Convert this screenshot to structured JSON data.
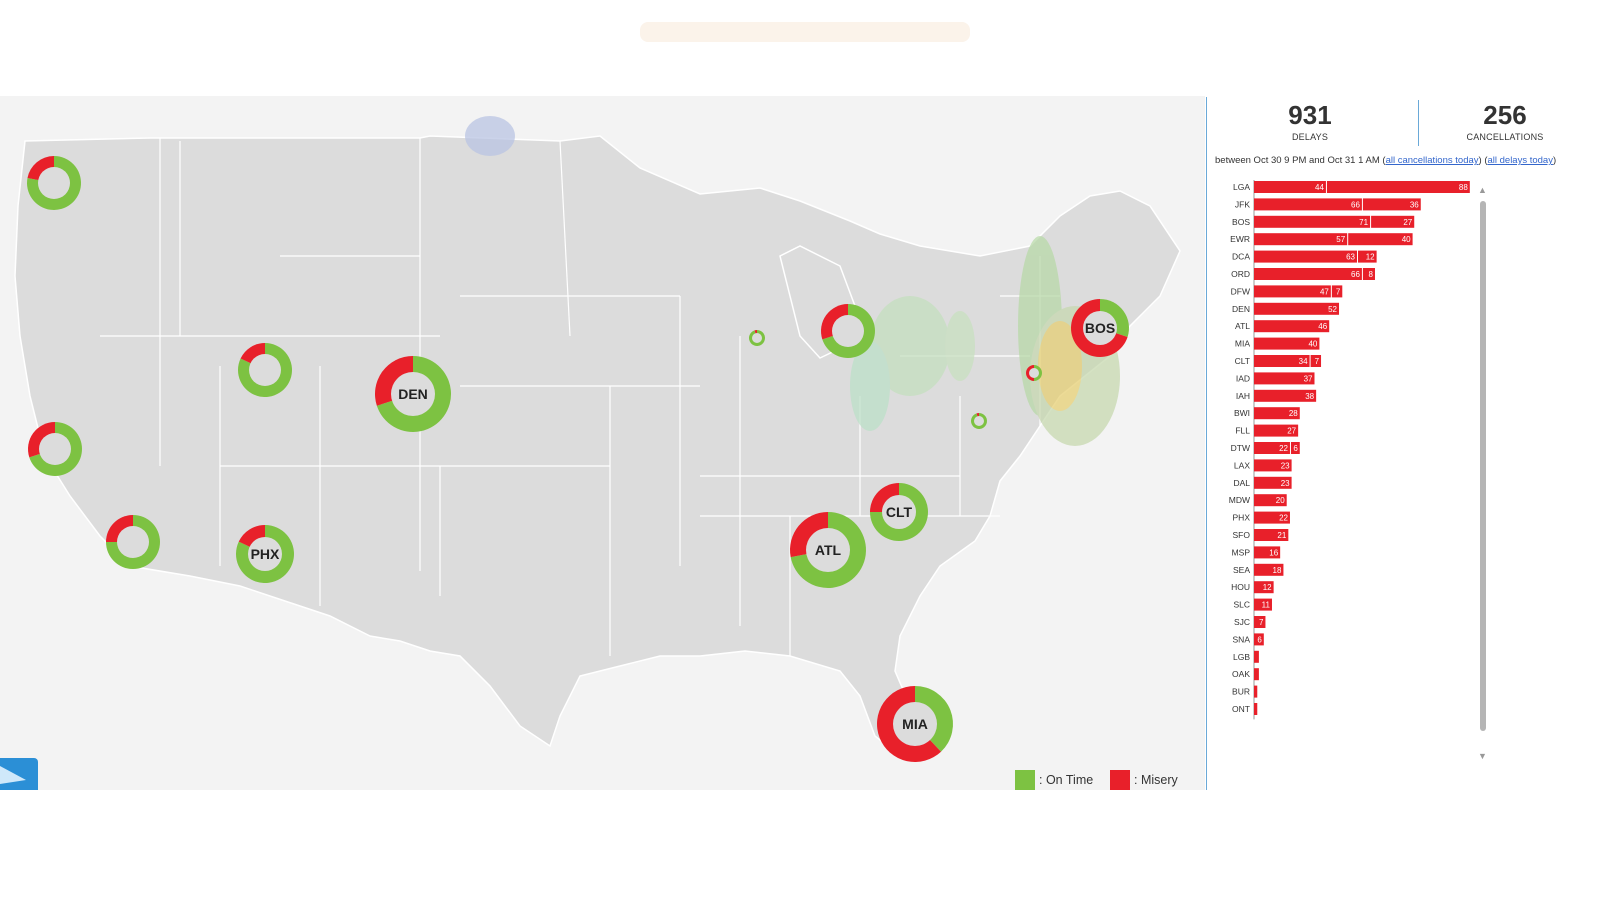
{
  "stats": {
    "delays": {
      "value": "931",
      "label": "DELAYS"
    },
    "cancellations": {
      "value": "256",
      "label": "CANCELLATIONS"
    },
    "range_text": "between Oct 30 9 PM and Oct 31 1 AM (",
    "link_cancellations": "all cancellations today",
    "link_sep": ") (",
    "link_delays": "all delays today",
    "range_end": ")"
  },
  "legend": {
    "on_time": ": On Time",
    "misery": ": Misery",
    "on_time_color": "#7dc242",
    "misery_color": "#e8202a"
  },
  "airports_map": [
    {
      "code": "",
      "misery": 0.22,
      "size": "small"
    },
    {
      "code": "",
      "misery": 0.18,
      "size": "small"
    },
    {
      "code": "",
      "misery": 0.3,
      "size": "small"
    },
    {
      "code": "",
      "misery": 0.25,
      "size": "small"
    },
    {
      "code": "",
      "misery": 0.05,
      "size": "tiny"
    },
    {
      "code": "",
      "misery": 0.3,
      "size": "small"
    },
    {
      "code": "",
      "misery": 0.5,
      "size": "tiny"
    },
    {
      "code": "",
      "misery": 0.05,
      "size": "tiny"
    },
    {
      "code": "DEN",
      "misery": 0.3,
      "size": "large"
    },
    {
      "code": "PHX",
      "misery": 0.18,
      "size": "medium"
    },
    {
      "code": "ATL",
      "misery": 0.28,
      "size": "large"
    },
    {
      "code": "CLT",
      "misery": 0.25,
      "size": "medium"
    },
    {
      "code": "BOS",
      "misery": 0.7,
      "size": "medium"
    },
    {
      "code": "MIA",
      "misery": 0.62,
      "size": "large"
    }
  ],
  "chart_data": {
    "type": "bar",
    "orientation": "horizontal",
    "stacked": true,
    "categories": [
      "LGA",
      "JFK",
      "BOS",
      "EWR",
      "DCA",
      "ORD",
      "DFW",
      "DEN",
      "ATL",
      "MIA",
      "CLT",
      "IAD",
      "IAH",
      "BWI",
      "FLL",
      "DTW",
      "LAX",
      "DAL",
      "MDW",
      "PHX",
      "SFO",
      "MSP",
      "SEA",
      "HOU",
      "SLC",
      "SJC",
      "SNA",
      "LGB",
      "OAK",
      "BUR",
      "ONT"
    ],
    "series": [
      {
        "values": [
          44,
          66,
          71,
          57,
          63,
          66,
          47,
          52,
          46,
          40,
          34,
          37,
          38,
          28,
          27,
          22,
          23,
          23,
          20,
          22,
          21,
          16,
          18,
          12,
          11,
          7,
          6,
          3,
          3,
          2,
          2
        ],
        "labels": [
          "44",
          "66",
          "71",
          "57",
          "63",
          "66",
          "47",
          "52",
          "46",
          "40",
          "34",
          "37",
          "38",
          "28",
          "27",
          "22",
          "23",
          "23",
          "20",
          "22",
          "21",
          "16",
          "18",
          "12",
          "11",
          "7",
          "6",
          "",
          "",
          "",
          ""
        ]
      },
      {
        "values": [
          88,
          36,
          27,
          40,
          12,
          8,
          7,
          0,
          0,
          0,
          7,
          0,
          0,
          0,
          0,
          6,
          0,
          0,
          0,
          0,
          0,
          0,
          0,
          0,
          0,
          0,
          0,
          0,
          0,
          0,
          0
        ],
        "labels": [
          "88",
          "36",
          "27",
          "40",
          "12",
          "8",
          "7",
          "",
          "",
          "",
          "7",
          "",
          "",
          "",
          "",
          "6",
          "",
          "",
          "",
          "",
          "",
          "",
          "",
          "",
          "",
          "",
          "",
          "",
          "",
          "",
          ""
        ]
      }
    ],
    "color": "#e8202a"
  }
}
